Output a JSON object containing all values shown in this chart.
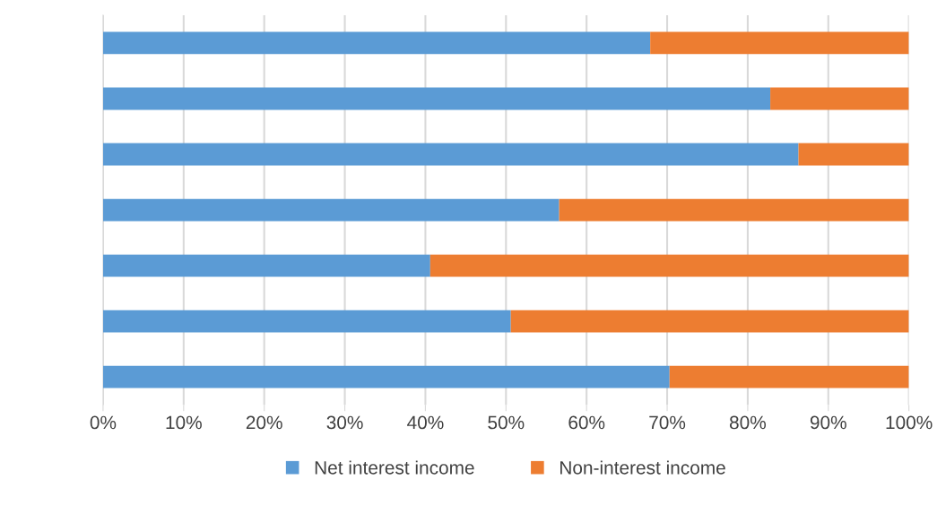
{
  "chart_data": {
    "type": "bar",
    "orientation": "horizontal",
    "stacked": true,
    "categories": [
      null,
      null,
      null,
      null,
      null,
      null,
      null
    ],
    "series": [
      {
        "name": "Net interest income",
        "color": "#5b9bd5",
        "values": [
          67.9,
          82.8,
          86.3,
          56.6,
          40.6,
          50.6,
          70.3
        ]
      },
      {
        "name": "Non-interest income",
        "color": "#ed7d31",
        "values": [
          32.1,
          17.2,
          13.7,
          43.4,
          59.4,
          49.4,
          29.7
        ]
      }
    ],
    "xlim": [
      0,
      100
    ],
    "xticks": [
      {
        "value": 0,
        "label": "0%"
      },
      {
        "value": 10,
        "label": "10%"
      },
      {
        "value": 20,
        "label": "20%"
      },
      {
        "value": 30,
        "label": "30%"
      },
      {
        "value": 40,
        "label": "40%"
      },
      {
        "value": 50,
        "label": "50%"
      },
      {
        "value": 60,
        "label": "60%"
      },
      {
        "value": 70,
        "label": "70%"
      },
      {
        "value": 80,
        "label": "80%"
      },
      {
        "value": 90,
        "label": "90%"
      },
      {
        "value": 100,
        "label": "100%"
      }
    ],
    "grid": "x",
    "legend": "bottom"
  }
}
